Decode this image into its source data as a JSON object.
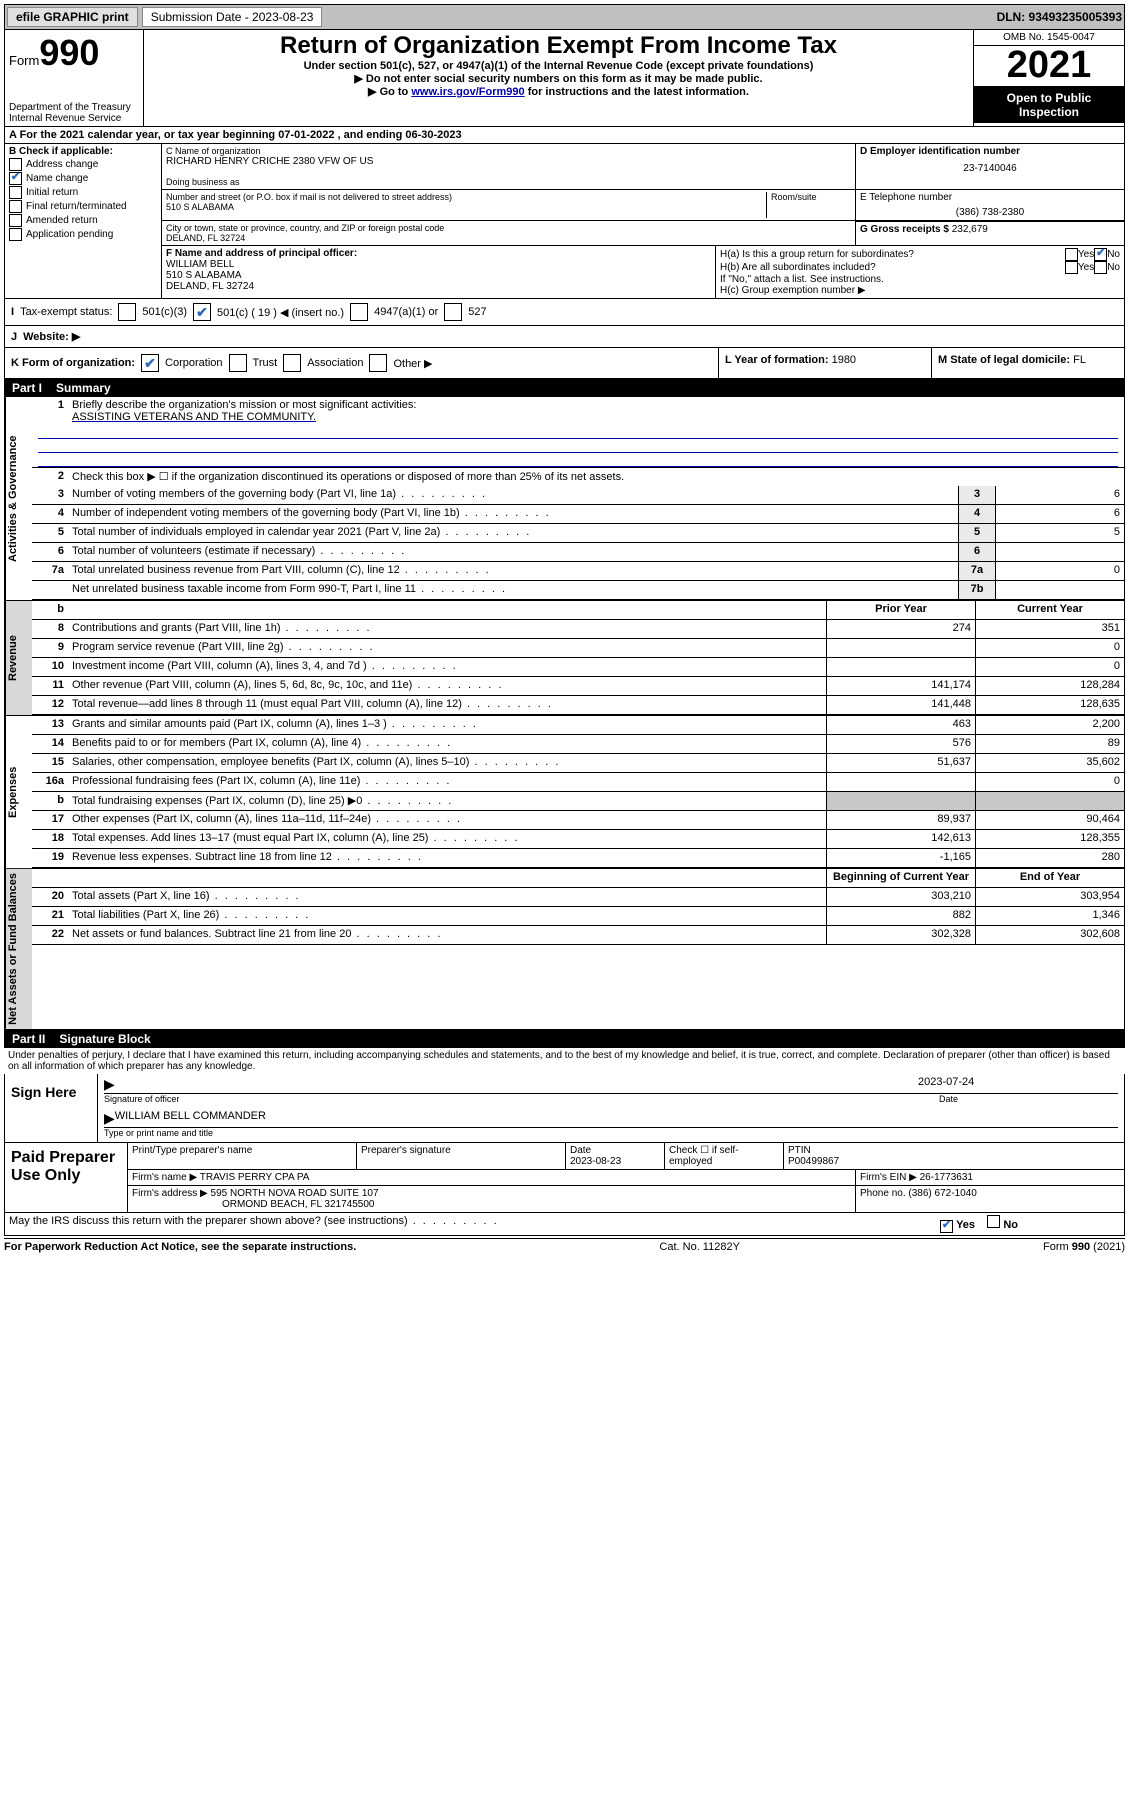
{
  "topbar": {
    "efile": "efile GRAPHIC print",
    "submission_label": "Submission Date - 2023-08-23",
    "dln": "DLN: 93493235005393"
  },
  "header": {
    "form_label": "Form",
    "form_num": "990",
    "dept": "Department of the Treasury",
    "irs": "Internal Revenue Service",
    "title": "Return of Organization Exempt From Income Tax",
    "sub1": "Under section 501(c), 527, or 4947(a)(1) of the Internal Revenue Code (except private foundations)",
    "sub2": "▶ Do not enter social security numbers on this form as it may be made public.",
    "sub3_pre": "▶ Go to ",
    "sub3_link": "www.irs.gov/Form990",
    "sub3_post": " for instructions and the latest information.",
    "omb": "OMB No. 1545-0047",
    "year": "2021",
    "open": "Open to Public Inspection"
  },
  "rowA": "A For the 2021 calendar year, or tax year beginning 07-01-2022  , and ending 06-30-2023",
  "boxB": {
    "label": "B Check if applicable:",
    "items": [
      {
        "txt": "Address change",
        "chk": false
      },
      {
        "txt": "Name change",
        "chk": true
      },
      {
        "txt": "Initial return",
        "chk": false
      },
      {
        "txt": "Final return/terminated",
        "chk": false
      },
      {
        "txt": "Amended return",
        "chk": false
      },
      {
        "txt": "Application pending",
        "chk": false
      }
    ]
  },
  "boxC": {
    "name_lbl": "C Name of organization",
    "name": "RICHARD HENRY CRICHE 2380 VFW OF US",
    "dba_lbl": "Doing business as",
    "addr_lbl": "Number and street (or P.O. box if mail is not delivered to street address)",
    "room_lbl": "Room/suite",
    "addr": "510 S ALABAMA",
    "city_lbl": "City or town, state or province, country, and ZIP or foreign postal code",
    "city": "DELAND, FL  32724"
  },
  "boxD": {
    "lbl": "D Employer identification number",
    "val": "23-7140046"
  },
  "boxE": {
    "lbl": "E Telephone number",
    "val": "(386) 738-2380"
  },
  "boxG": {
    "lbl": "G Gross receipts $",
    "val": "232,679"
  },
  "boxF": {
    "lbl": "F Name and address of principal officer:",
    "name": "WILLIAM BELL",
    "addr": "510 S ALABAMA",
    "city": "DELAND, FL  32724"
  },
  "boxH": {
    "a": "H(a)  Is this a group return for subordinates?",
    "b": "H(b)  Are all subordinates included?",
    "note": "If \"No,\" attach a list. See instructions.",
    "c": "H(c)  Group exemption number ▶",
    "yes": "Yes",
    "no": "No"
  },
  "boxI": {
    "lbl": "Tax-exempt status:",
    "o1": "501(c)(3)",
    "o2": "501(c) ( 19 ) ◀ (insert no.)",
    "o3": "4947(a)(1) or",
    "o4": "527"
  },
  "boxJ": "Website: ▶",
  "boxK": "K Form of organization:",
  "K_opts": [
    "Corporation",
    "Trust",
    "Association",
    "Other ▶"
  ],
  "boxL": {
    "lbl": "L Year of formation:",
    "val": "1980"
  },
  "boxM": {
    "lbl": "M State of legal domicile:",
    "val": "FL"
  },
  "partI": {
    "num": "Part I",
    "title": "Summary"
  },
  "mission": {
    "q": "Briefly describe the organization's mission or most significant activities:",
    "txt": "ASSISTING VETERANS AND THE COMMUNITY."
  },
  "line2": "Check this box ▶ ☐  if the organization discontinued its operations or disposed of more than 25% of its net assets.",
  "lines_small": [
    {
      "n": "3",
      "t": "Number of voting members of the governing body (Part VI, line 1a)",
      "box": "3",
      "v": "6"
    },
    {
      "n": "4",
      "t": "Number of independent voting members of the governing body (Part VI, line 1b)",
      "box": "4",
      "v": "6"
    },
    {
      "n": "5",
      "t": "Total number of individuals employed in calendar year 2021 (Part V, line 2a)",
      "box": "5",
      "v": "5"
    },
    {
      "n": "6",
      "t": "Total number of volunteers (estimate if necessary)",
      "box": "6",
      "v": ""
    },
    {
      "n": "7a",
      "t": "Total unrelated business revenue from Part VIII, column (C), line 12",
      "box": "7a",
      "v": "0"
    },
    {
      "n": "",
      "t": "Net unrelated business taxable income from Form 990-T, Part I, line 11",
      "box": "7b",
      "v": ""
    }
  ],
  "col_hdrs": {
    "b": "b",
    "prior": "Prior Year",
    "curr": "Current Year"
  },
  "revenue": [
    {
      "n": "8",
      "t": "Contributions and grants (Part VIII, line 1h)",
      "p": "274",
      "c": "351"
    },
    {
      "n": "9",
      "t": "Program service revenue (Part VIII, line 2g)",
      "p": "",
      "c": "0"
    },
    {
      "n": "10",
      "t": "Investment income (Part VIII, column (A), lines 3, 4, and 7d )",
      "p": "",
      "c": "0"
    },
    {
      "n": "11",
      "t": "Other revenue (Part VIII, column (A), lines 5, 6d, 8c, 9c, 10c, and 11e)",
      "p": "141,174",
      "c": "128,284"
    },
    {
      "n": "12",
      "t": "Total revenue—add lines 8 through 11 (must equal Part VIII, column (A), line 12)",
      "p": "141,448",
      "c": "128,635"
    }
  ],
  "expenses": [
    {
      "n": "13",
      "t": "Grants and similar amounts paid (Part IX, column (A), lines 1–3 )",
      "p": "463",
      "c": "2,200"
    },
    {
      "n": "14",
      "t": "Benefits paid to or for members (Part IX, column (A), line 4)",
      "p": "576",
      "c": "89"
    },
    {
      "n": "15",
      "t": "Salaries, other compensation, employee benefits (Part IX, column (A), lines 5–10)",
      "p": "51,637",
      "c": "35,602"
    },
    {
      "n": "16a",
      "t": "Professional fundraising fees (Part IX, column (A), line 11e)",
      "p": "",
      "c": "0"
    },
    {
      "n": "b",
      "t": "Total fundraising expenses (Part IX, column (D), line 25) ▶0",
      "p": "GREY",
      "c": "GREY"
    },
    {
      "n": "17",
      "t": "Other expenses (Part IX, column (A), lines 11a–11d, 11f–24e)",
      "p": "89,937",
      "c": "90,464"
    },
    {
      "n": "18",
      "t": "Total expenses. Add lines 13–17 (must equal Part IX, column (A), line 25)",
      "p": "142,613",
      "c": "128,355"
    },
    {
      "n": "19",
      "t": "Revenue less expenses. Subtract line 18 from line 12",
      "p": "-1,165",
      "c": "280"
    }
  ],
  "na_hdrs": {
    "begin": "Beginning of Current Year",
    "end": "End of Year"
  },
  "netassets": [
    {
      "n": "20",
      "t": "Total assets (Part X, line 16)",
      "p": "303,210",
      "c": "303,954"
    },
    {
      "n": "21",
      "t": "Total liabilities (Part X, line 26)",
      "p": "882",
      "c": "1,346"
    },
    {
      "n": "22",
      "t": "Net assets or fund balances. Subtract line 21 from line 20",
      "p": "302,328",
      "c": "302,608"
    }
  ],
  "partII": {
    "num": "Part II",
    "title": "Signature Block"
  },
  "perjury": "Under penalties of perjury, I declare that I have examined this return, including accompanying schedules and statements, and to the best of my knowledge and belief, it is true, correct, and complete. Declaration of preparer (other than officer) is based on all information of which preparer has any knowledge.",
  "sign": {
    "here": "Sign Here",
    "date": "2023-07-24",
    "sig_lbl": "Signature of officer",
    "date_lbl": "Date",
    "name": "WILLIAM BELL COMMANDER",
    "name_lbl": "Type or print name and title"
  },
  "paid": {
    "title": "Paid Preparer Use Only",
    "hdr_name": "Print/Type preparer's name",
    "hdr_sig": "Preparer's signature",
    "hdr_date": "Date",
    "date": "2023-08-23",
    "chk_lbl": "Check ☐ if self-employed",
    "ptin_lbl": "PTIN",
    "ptin": "P00499867",
    "firm_name_lbl": "Firm's name   ▶",
    "firm_name": "TRAVIS PERRY CPA PA",
    "firm_ein_lbl": "Firm's EIN ▶",
    "firm_ein": "26-1773631",
    "firm_addr_lbl": "Firm's address ▶",
    "firm_addr1": "595 NORTH NOVA ROAD SUITE 107",
    "firm_addr2": "ORMOND BEACH, FL  321745500",
    "phone_lbl": "Phone no.",
    "phone": "(386) 672-1040"
  },
  "discuss": "May the IRS discuss this return with the preparer shown above? (see instructions)",
  "footer": {
    "left": "For Paperwork Reduction Act Notice, see the separate instructions.",
    "mid": "Cat. No. 11282Y",
    "right": "Form 990 (2021)"
  },
  "side_labels": {
    "gov": "Activities & Governance",
    "rev": "Revenue",
    "exp": "Expenses",
    "na": "Net Assets or Fund Balances"
  }
}
